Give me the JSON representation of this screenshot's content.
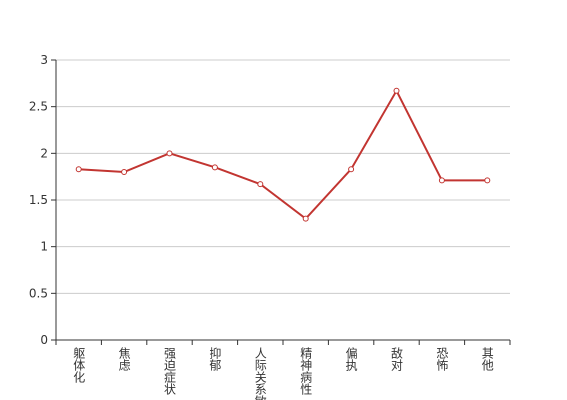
{
  "chart_data": {
    "type": "line",
    "categories": [
      "躯体化",
      "焦虑",
      "强迫症状",
      "抑郁",
      "人际关系敏感",
      "精神病性",
      "偏执",
      "敌对",
      "恐怖",
      "其他"
    ],
    "series": [
      {
        "color": "#c23531",
        "values": [
          1.83,
          1.8,
          2.0,
          1.85,
          1.67,
          1.3,
          1.83,
          2.67,
          1.71,
          1.71
        ]
      }
    ],
    "ylim": [
      0,
      3
    ],
    "yticks": [
      0,
      0.5,
      1,
      1.5,
      2,
      2.5,
      3
    ],
    "grid": true
  }
}
